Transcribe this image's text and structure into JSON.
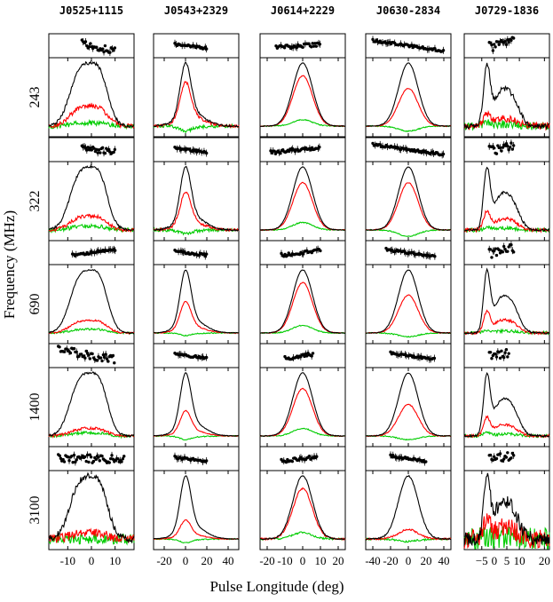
{
  "chart_data": {
    "type": "line",
    "xlabel": "Pulse Longitude (deg)",
    "ylabel": "Frequency (MHz)",
    "frequencies": [
      "243",
      "322",
      "690",
      "1400",
      "3100"
    ],
    "legend": "none",
    "grid": false,
    "colors": {
      "total": "#000000",
      "linear": "#ff0000",
      "circular": "#00cc00"
    },
    "pulsars": [
      {
        "name": "J0525+1115",
        "xlim": [
          -18,
          18
        ],
        "xticks": [
          -10,
          0,
          10
        ],
        "comps": [
          [
            -6,
            4,
            0.75
          ],
          [
            -1,
            4,
            0.6
          ],
          [
            4,
            3.5,
            0.75
          ]
        ],
        "frac": [
          {
            "lin": 0.32,
            "circ": 0.05,
            "noise": 0.05,
            "pa": [
              -4,
              10,
              -0.05,
              0.3
            ]
          },
          {
            "lin": 0.22,
            "circ": 0.06,
            "noise": 0.04,
            "pa": [
              -4,
              10,
              -0.02,
              0.25
            ]
          },
          {
            "lin": 0.2,
            "circ": 0.06,
            "noise": 0.02,
            "pa": [
              -8,
              10,
              0.03,
              0.1
            ]
          },
          {
            "lin": 0.12,
            "circ": 0.05,
            "noise": 0.03,
            "pa": [
              -14,
              10,
              -0.04,
              0.35
            ]
          },
          {
            "lin": 0.1,
            "circ": 0.0,
            "noise": 0.1,
            "pa": [
              -14,
              14,
              0.0,
              0.35
            ]
          }
        ]
      },
      {
        "name": "J0543+2329",
        "xlim": [
          -30,
          50
        ],
        "xticks": [
          -20,
          0,
          20,
          40
        ],
        "comps": [
          [
            0,
            5,
            1
          ],
          [
            6,
            12,
            0.25
          ]
        ],
        "frac": [
          {
            "lin": 0.7,
            "circ": -0.08,
            "noise": 0.03,
            "pa": [
              -10,
              20,
              -0.012,
              0.1
            ]
          },
          {
            "lin": 0.6,
            "circ": -0.06,
            "noise": 0.03,
            "pa": [
              -10,
              20,
              -0.012,
              0.1
            ]
          },
          {
            "lin": 0.5,
            "circ": -0.04,
            "noise": 0.01,
            "pa": [
              -10,
              20,
              -0.012,
              0.1
            ]
          },
          {
            "lin": 0.4,
            "circ": -0.06,
            "noise": 0.01,
            "pa": [
              -10,
              20,
              -0.012,
              0.1
            ]
          },
          {
            "lin": 0.3,
            "circ": -0.06,
            "noise": 0.01,
            "pa": [
              -10,
              20,
              -0.012,
              0.1
            ]
          }
        ]
      },
      {
        "name": "J0614+2229",
        "xlim": [
          -24,
          24
        ],
        "xticks": [
          -20,
          -10,
          0,
          10,
          20
        ],
        "comps": [
          [
            0,
            5.5,
            1
          ]
        ],
        "frac": [
          {
            "lin": 0.8,
            "circ": 0.1,
            "noise": 0.01,
            "pa": [
              -15,
              10,
              0.012,
              0.15
            ]
          },
          {
            "lin": 0.75,
            "circ": 0.12,
            "noise": 0.01,
            "pa": [
              -18,
              10,
              0.015,
              0.15
            ]
          },
          {
            "lin": 0.8,
            "circ": 0.12,
            "noise": 0.01,
            "pa": [
              -12,
              10,
              0.02,
              0.15
            ]
          },
          {
            "lin": 0.75,
            "circ": 0.12,
            "noise": 0.01,
            "pa": [
              -10,
              6,
              0.025,
              0.15
            ]
          },
          {
            "lin": 0.8,
            "circ": 0.1,
            "noise": 0.02,
            "pa": [
              -12,
              8,
              0.02,
              0.15
            ]
          }
        ]
      },
      {
        "name": "J0630-2834",
        "xlim": [
          -48,
          48
        ],
        "xticks": [
          -40,
          -20,
          0,
          20,
          40
        ],
        "comps": [
          [
            0,
            11,
            1
          ]
        ],
        "frac": [
          {
            "lin": 0.6,
            "circ": -0.08,
            "noise": 0.01,
            "pa": [
              -40,
              40,
              -0.012,
              0.1
            ]
          },
          {
            "lin": 0.75,
            "circ": -0.1,
            "noise": 0.01,
            "pa": [
              -40,
              40,
              -0.012,
              0.1
            ]
          },
          {
            "lin": 0.6,
            "circ": -0.06,
            "noise": 0.01,
            "pa": [
              -25,
              30,
              -0.012,
              0.1
            ]
          },
          {
            "lin": 0.5,
            "circ": -0.06,
            "noise": 0.01,
            "pa": [
              -20,
              30,
              -0.012,
              0.1
            ]
          },
          {
            "lin": 0.15,
            "circ": -0.04,
            "noise": 0.02,
            "pa": [
              -20,
              20,
              -0.012,
              0.1
            ]
          }
        ]
      },
      {
        "name": "J0729-1836",
        "xlim": [
          -12,
          22
        ],
        "xticks": [
          -10,
          -5,
          0,
          5,
          10,
          15,
          20
        ],
        "xticklabels": [
          "−5",
          "0",
          "5",
          "10",
          "20"
        ],
        "xtickvalues": [
          -5,
          0,
          5,
          10,
          20
        ],
        "comps": [
          [
            -3,
            1.3,
            1
          ],
          [
            2,
            3,
            0.5
          ],
          [
            7,
            3,
            0.45
          ]
        ],
        "frac": [
          {
            "lin": 0.2,
            "circ": 0.05,
            "noise": 0.08,
            "pa": [
              -2,
              8,
              0.05,
              0.4
            ]
          },
          {
            "lin": 0.3,
            "circ": 0.05,
            "noise": 0.04,
            "pa": [
              -2,
              8,
              0.05,
              0.4
            ]
          },
          {
            "lin": 0.35,
            "circ": 0.05,
            "noise": 0.03,
            "pa": [
              -2,
              8,
              0.05,
              0.4
            ]
          },
          {
            "lin": 0.3,
            "circ": 0.05,
            "noise": 0.03,
            "pa": [
              -2,
              6,
              0.05,
              0.4
            ]
          },
          {
            "lin": 0.3,
            "circ": 0.05,
            "noise": 0.22,
            "pa": [
              -2,
              8,
              0.05,
              0.4
            ]
          }
        ]
      }
    ]
  }
}
